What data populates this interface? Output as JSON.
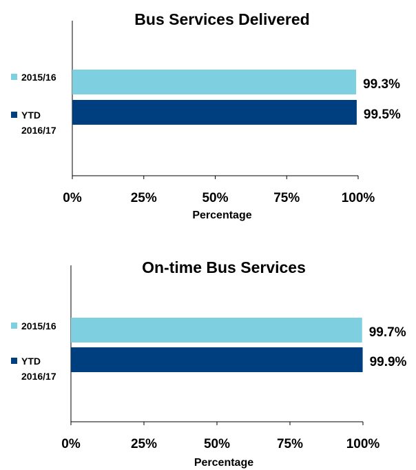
{
  "chart_data": [
    {
      "type": "bar",
      "title": "Bus Services Delivered",
      "x_label": "Percentage",
      "series": [
        {
          "name": "2015/16",
          "color": "#7ecfe0",
          "values": [
            99.3
          ],
          "value_labels": [
            "99.3%"
          ]
        },
        {
          "name": "YTD 2016/17",
          "color": "#003f7f",
          "values": [
            99.5
          ],
          "value_labels": [
            "99.5%"
          ]
        }
      ],
      "xlim": [
        0,
        100
      ],
      "xticks": [
        {
          "value": 0,
          "label": "0%"
        },
        {
          "value": 25,
          "label": "25%"
        },
        {
          "value": 50,
          "label": "50%"
        },
        {
          "value": 75,
          "label": "75%"
        },
        {
          "value": 100,
          "label": "100%"
        }
      ]
    },
    {
      "type": "bar",
      "title": "On-time Bus Services",
      "x_label": "Percentage",
      "series": [
        {
          "name": "2015/16",
          "color": "#7ecfe0",
          "values": [
            99.7
          ],
          "value_labels": [
            "99.7%"
          ]
        },
        {
          "name": "YTD 2016/17",
          "color": "#003f7f",
          "values": [
            99.9
          ],
          "value_labels": [
            "99.9%"
          ]
        }
      ],
      "xlim": [
        0,
        100
      ],
      "xticks": [
        {
          "value": 0,
          "label": "0%"
        },
        {
          "value": 25,
          "label": "25%"
        },
        {
          "value": 50,
          "label": "50%"
        },
        {
          "value": 75,
          "label": "75%"
        },
        {
          "value": 100,
          "label": "100%"
        }
      ]
    }
  ]
}
